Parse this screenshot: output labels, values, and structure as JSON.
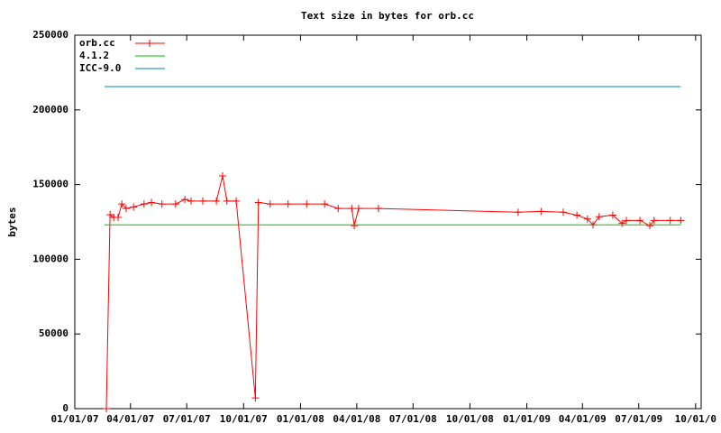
{
  "chart_data": {
    "type": "line",
    "title": "Text size in bytes for orb.cc",
    "y_label": "bytes",
    "xlim": [
      "2007-01-01",
      "2009-10-10"
    ],
    "xticks": [
      {
        "value": "2007-01-01",
        "label": "01/01/07"
      },
      {
        "value": "2007-04-01",
        "label": "04/01/07"
      },
      {
        "value": "2007-07-01",
        "label": "07/01/07"
      },
      {
        "value": "2007-10-01",
        "label": "10/01/07"
      },
      {
        "value": "2008-01-01",
        "label": "01/01/08"
      },
      {
        "value": "2008-04-01",
        "label": "04/01/08"
      },
      {
        "value": "2008-07-01",
        "label": "07/01/08"
      },
      {
        "value": "2008-10-01",
        "label": "10/01/08"
      },
      {
        "value": "2009-01-01",
        "label": "01/01/09"
      },
      {
        "value": "2009-04-01",
        "label": "04/01/09"
      },
      {
        "value": "2009-07-01",
        "label": "07/01/09"
      },
      {
        "value": "2009-10-01",
        "label": "10/01/0"
      }
    ],
    "ylim": [
      0,
      250000
    ],
    "yticks": [
      0,
      50000,
      100000,
      150000,
      200000,
      250000
    ],
    "legend": "top-left",
    "series": [
      {
        "name": "orb.cc",
        "color": "#ff0000",
        "markers": true,
        "x": [
          "2007-02-21",
          "2007-02-27",
          "2007-03-05",
          "2007-03-12",
          "2007-03-18",
          "2007-03-25",
          "2007-04-06",
          "2007-04-23",
          "2007-05-05",
          "2007-05-22",
          "2007-06-13",
          "2007-06-28",
          "2007-07-08",
          "2007-07-27",
          "2007-08-18",
          "2007-08-28",
          "2007-09-04",
          "2007-09-19",
          "2007-10-20",
          "2007-10-25",
          "2007-11-13",
          "2007-12-12",
          "2008-01-11",
          "2008-02-09",
          "2008-03-02",
          "2008-03-24",
          "2008-03-28",
          "2008-04-04",
          "2008-05-06",
          "2008-12-18",
          "2009-01-24",
          "2009-03-01",
          "2009-03-23",
          "2009-04-09",
          "2009-04-18",
          "2009-04-28",
          "2009-05-20",
          "2009-06-04",
          "2009-06-11",
          "2009-07-03",
          "2009-07-19",
          "2009-07-26",
          "2009-08-21",
          "2009-09-07"
        ],
        "values": [
          0,
          129800,
          128000,
          128000,
          137000,
          134000,
          135000,
          137000,
          138000,
          137000,
          137000,
          140000,
          139000,
          139000,
          139000,
          155800,
          139000,
          139000,
          7200,
          138000,
          137000,
          137000,
          137000,
          137000,
          134000,
          134000,
          122500,
          134000,
          134000,
          131500,
          132000,
          131500,
          129500,
          127000,
          123000,
          128500,
          129500,
          124000,
          126000,
          126000,
          122500,
          126000,
          126000,
          126000
        ]
      },
      {
        "name": "4.1.2",
        "color": "#00c000",
        "markers": false,
        "x": [
          "2007-02-18",
          "2009-09-07"
        ],
        "values": [
          123000,
          123000
        ]
      },
      {
        "name": "ICC-9.0",
        "color": "#0080c0",
        "markers": false,
        "x": [
          "2007-02-18",
          "2009-09-07"
        ],
        "values": [
          215600,
          215600
        ]
      }
    ]
  }
}
